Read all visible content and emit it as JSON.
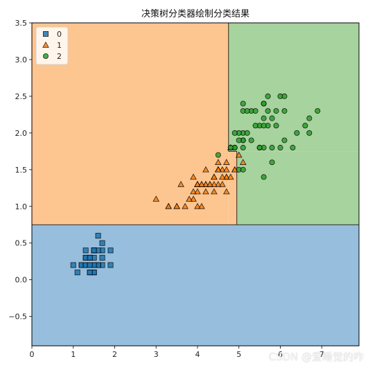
{
  "chart_data": {
    "type": "scatter",
    "title": "决策树分类器绘制分类结果",
    "xlim": [
      0,
      7.9
    ],
    "ylim": [
      -0.9,
      3.5
    ],
    "x_ticks": [
      0,
      1,
      2,
      3,
      4,
      5,
      6,
      7
    ],
    "y_ticks": [
      -0.5,
      0.0,
      0.5,
      1.0,
      1.5,
      2.0,
      2.5,
      3.0,
      3.5
    ],
    "y_tick_labels": [
      "−0.5",
      "0.0",
      "0.5",
      "1.0",
      "1.5",
      "2.0",
      "2.5",
      "3.0",
      "3.5"
    ],
    "legend_position": "top-left",
    "regions": [
      {
        "class": "0",
        "x": [
          0,
          7.9
        ],
        "y": [
          -0.9,
          0.75
        ],
        "color": "#97bedc"
      },
      {
        "class": "1",
        "x": [
          0,
          4.75
        ],
        "y": [
          0.75,
          3.5
        ],
        "color": "#fdc590"
      },
      {
        "class": "1",
        "x": [
          4.75,
          4.95
        ],
        "y": [
          0.75,
          1.75
        ],
        "color": "#fdc590"
      },
      {
        "class": "2",
        "x": [
          4.75,
          7.9
        ],
        "y": [
          1.75,
          3.5
        ],
        "color": "#a7d39e"
      },
      {
        "class": "2",
        "x": [
          4.95,
          7.9
        ],
        "y": [
          0.75,
          1.75
        ],
        "color": "#a7d39e"
      }
    ],
    "series": [
      {
        "name": "0",
        "marker": "square",
        "color": "#1f77b4",
        "points": [
          [
            1.4,
            0.2
          ],
          [
            1.4,
            0.2
          ],
          [
            1.3,
            0.2
          ],
          [
            1.5,
            0.2
          ],
          [
            1.4,
            0.2
          ],
          [
            1.7,
            0.4
          ],
          [
            1.4,
            0.3
          ],
          [
            1.5,
            0.2
          ],
          [
            1.4,
            0.2
          ],
          [
            1.5,
            0.1
          ],
          [
            1.5,
            0.2
          ],
          [
            1.6,
            0.2
          ],
          [
            1.4,
            0.1
          ],
          [
            1.1,
            0.1
          ],
          [
            1.2,
            0.2
          ],
          [
            1.5,
            0.4
          ],
          [
            1.3,
            0.4
          ],
          [
            1.4,
            0.3
          ],
          [
            1.7,
            0.3
          ],
          [
            1.5,
            0.3
          ],
          [
            1.7,
            0.2
          ],
          [
            1.5,
            0.4
          ],
          [
            1.0,
            0.2
          ],
          [
            1.7,
            0.5
          ],
          [
            1.9,
            0.2
          ],
          [
            1.6,
            0.2
          ],
          [
            1.6,
            0.4
          ],
          [
            1.5,
            0.2
          ],
          [
            1.4,
            0.2
          ],
          [
            1.6,
            0.2
          ],
          [
            1.6,
            0.2
          ],
          [
            1.5,
            0.4
          ],
          [
            1.5,
            0.1
          ],
          [
            1.4,
            0.2
          ],
          [
            1.5,
            0.2
          ],
          [
            1.2,
            0.2
          ],
          [
            1.3,
            0.2
          ],
          [
            1.4,
            0.1
          ],
          [
            1.3,
            0.2
          ],
          [
            1.5,
            0.2
          ],
          [
            1.3,
            0.3
          ],
          [
            1.3,
            0.3
          ],
          [
            1.3,
            0.2
          ],
          [
            1.6,
            0.6
          ],
          [
            1.9,
            0.4
          ],
          [
            1.4,
            0.3
          ],
          [
            1.6,
            0.2
          ],
          [
            1.4,
            0.2
          ],
          [
            1.5,
            0.2
          ],
          [
            1.4,
            0.2
          ]
        ]
      },
      {
        "name": "1",
        "marker": "triangle",
        "color": "#ff7f0e",
        "points": [
          [
            4.7,
            1.4
          ],
          [
            4.5,
            1.5
          ],
          [
            4.9,
            1.5
          ],
          [
            4.0,
            1.3
          ],
          [
            4.6,
            1.5
          ],
          [
            4.5,
            1.3
          ],
          [
            4.7,
            1.6
          ],
          [
            3.3,
            1.0
          ],
          [
            4.6,
            1.3
          ],
          [
            3.9,
            1.4
          ],
          [
            3.5,
            1.0
          ],
          [
            4.2,
            1.5
          ],
          [
            4.0,
            1.0
          ],
          [
            4.7,
            1.4
          ],
          [
            3.6,
            1.3
          ],
          [
            4.4,
            1.4
          ],
          [
            4.5,
            1.5
          ],
          [
            4.1,
            1.0
          ],
          [
            4.5,
            1.5
          ],
          [
            3.9,
            1.1
          ],
          [
            4.8,
            1.8
          ],
          [
            4.0,
            1.3
          ],
          [
            4.9,
            1.5
          ],
          [
            4.7,
            1.2
          ],
          [
            4.3,
            1.3
          ],
          [
            4.4,
            1.4
          ],
          [
            4.8,
            1.4
          ],
          [
            5.0,
            1.7
          ],
          [
            4.5,
            1.5
          ],
          [
            3.5,
            1.0
          ],
          [
            3.8,
            1.1
          ],
          [
            3.7,
            1.0
          ],
          [
            3.9,
            1.2
          ],
          [
            5.1,
            1.6
          ],
          [
            4.5,
            1.5
          ],
          [
            4.5,
            1.6
          ],
          [
            4.7,
            1.5
          ],
          [
            4.4,
            1.3
          ],
          [
            4.1,
            1.3
          ],
          [
            4.0,
            1.3
          ],
          [
            4.4,
            1.2
          ],
          [
            4.6,
            1.4
          ],
          [
            4.0,
            1.2
          ],
          [
            3.3,
            1.0
          ],
          [
            4.2,
            1.3
          ],
          [
            4.2,
            1.2
          ],
          [
            4.2,
            1.3
          ],
          [
            4.3,
            1.3
          ],
          [
            3.0,
            1.1
          ],
          [
            4.1,
            1.3
          ]
        ]
      },
      {
        "name": "2",
        "marker": "circle",
        "color": "#2ca02c",
        "points": [
          [
            6.0,
            2.5
          ],
          [
            5.1,
            1.9
          ],
          [
            5.9,
            2.1
          ],
          [
            5.6,
            1.8
          ],
          [
            5.8,
            2.2
          ],
          [
            6.6,
            2.1
          ],
          [
            4.5,
            1.7
          ],
          [
            6.3,
            1.8
          ],
          [
            5.8,
            1.8
          ],
          [
            6.1,
            2.5
          ],
          [
            5.1,
            2.0
          ],
          [
            5.3,
            1.9
          ],
          [
            5.5,
            2.1
          ],
          [
            5.0,
            2.0
          ],
          [
            5.1,
            2.4
          ],
          [
            5.3,
            2.3
          ],
          [
            5.5,
            1.8
          ],
          [
            6.7,
            2.2
          ],
          [
            6.9,
            2.3
          ],
          [
            5.0,
            1.5
          ],
          [
            5.7,
            2.3
          ],
          [
            4.9,
            2.0
          ],
          [
            6.7,
            2.0
          ],
          [
            4.9,
            1.8
          ],
          [
            5.7,
            2.1
          ],
          [
            6.0,
            1.8
          ],
          [
            4.8,
            1.8
          ],
          [
            4.9,
            1.8
          ],
          [
            5.6,
            2.1
          ],
          [
            5.8,
            1.6
          ],
          [
            6.1,
            1.9
          ],
          [
            6.4,
            2.0
          ],
          [
            5.6,
            2.2
          ],
          [
            5.1,
            1.5
          ],
          [
            5.6,
            1.4
          ],
          [
            6.1,
            2.3
          ],
          [
            5.6,
            2.4
          ],
          [
            5.5,
            1.8
          ],
          [
            4.8,
            1.8
          ],
          [
            5.4,
            2.1
          ],
          [
            5.6,
            2.4
          ],
          [
            5.1,
            2.3
          ],
          [
            5.1,
            1.9
          ],
          [
            5.9,
            2.3
          ],
          [
            5.7,
            2.5
          ],
          [
            5.2,
            2.3
          ],
          [
            5.0,
            1.9
          ],
          [
            5.2,
            2.0
          ],
          [
            5.4,
            2.3
          ],
          [
            5.1,
            1.8
          ]
        ]
      }
    ]
  },
  "watermark": "CSDN @爱睡觉的咋",
  "colors": {
    "axis": "#000000",
    "region_0": "#97bedc",
    "region_1": "#fdc590",
    "region_2": "#a7d39e"
  }
}
